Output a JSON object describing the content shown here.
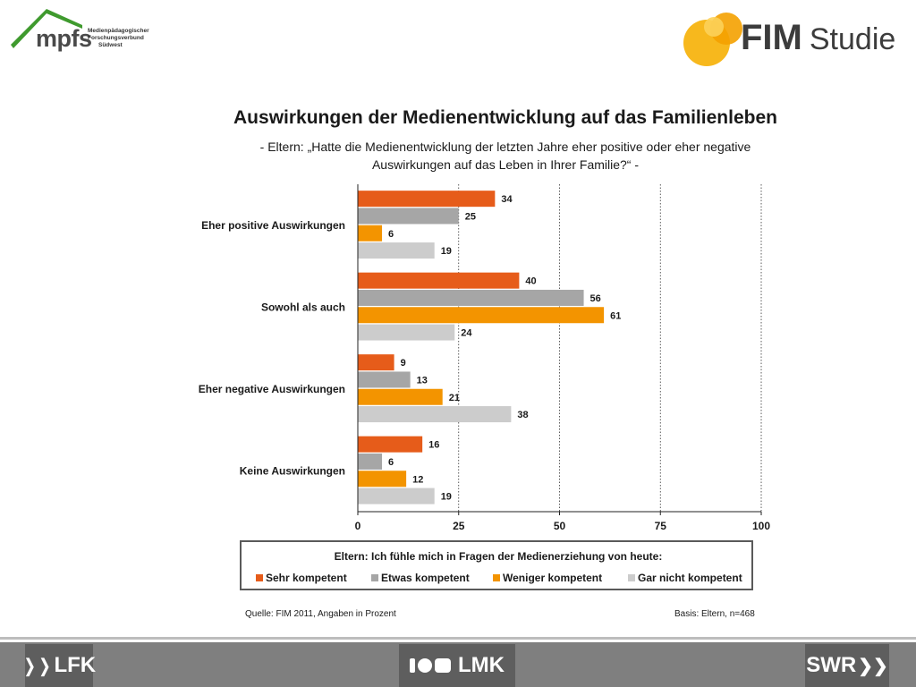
{
  "header": {
    "mpfs_logo": "mpfs",
    "mpfs_subtitle": [
      "Medienpädagogischer",
      "Forschungsverbund",
      "Südwest"
    ],
    "fim_logo": "FIM",
    "fim_logo_suffix": "Studie"
  },
  "title": "Auswirkungen der Medienentwicklung auf das Familienleben",
  "subtitle_line1": "- Eltern: „Hatte die Medienentwicklung der letzten Jahre eher positive oder eher negative",
  "subtitle_line2": "Auswirkungen auf das Leben in Ihrer Familie?“ -",
  "chart_data": {
    "type": "bar",
    "orientation": "horizontal",
    "categories": [
      "Eher positive Auswirkungen",
      "Sowohl als auch",
      "Eher negative  Auswirkungen",
      "Keine Auswirkungen"
    ],
    "series": [
      {
        "name": "Sehr kompetent",
        "color": "#e65c1a",
        "values": [
          34,
          40,
          9,
          16
        ]
      },
      {
        "name": "Etwas kompetent",
        "color": "#a6a6a6",
        "values": [
          25,
          56,
          13,
          6
        ]
      },
      {
        "name": "Weniger kompetent",
        "color": "#f39400",
        "values": [
          6,
          61,
          21,
          12
        ]
      },
      {
        "name": "Gar nicht kompetent",
        "color": "#cccccc",
        "values": [
          19,
          24,
          38,
          19
        ]
      }
    ],
    "xlim": [
      0,
      100
    ],
    "xticks": [
      "0",
      "25",
      "50",
      "75",
      "100"
    ],
    "grid": "vertical dotted",
    "legend_title": "Eltern: Ich fühle mich in Fragen der Medienerziehung von heute:",
    "legend_placement": "bottom"
  },
  "legend": {
    "title": "Eltern: Ich fühle mich in Fragen der Medienerziehung von heute:",
    "items": [
      "Sehr kompetent",
      "Etwas kompetent",
      "Weniger kompetent",
      "Gar nicht kompetent"
    ]
  },
  "source": "Quelle: FIM 2011,  Angaben in Prozent",
  "basis": "Basis: Eltern, n=468",
  "footer": {
    "lfk": "LFK",
    "lmk": "LMK",
    "swr": "SWR"
  }
}
